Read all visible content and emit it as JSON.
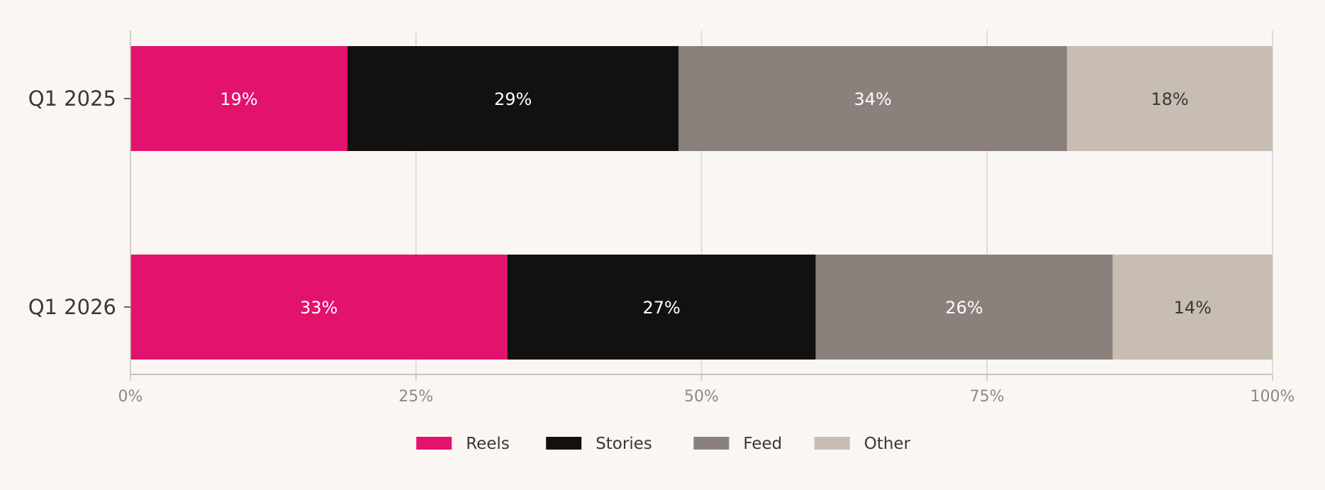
{
  "chart_data": {
    "type": "bar",
    "orientation": "horizontal",
    "stacked": true,
    "categories": [
      "Q1 2025",
      "Q1 2026"
    ],
    "series": [
      {
        "name": "Reels",
        "values": [
          19,
          33
        ],
        "color": "#e3126d",
        "label_color": "#ffffff"
      },
      {
        "name": "Stories",
        "values": [
          29,
          27
        ],
        "color": "#121110",
        "label_color": "#ffffff"
      },
      {
        "name": "Feed",
        "values": [
          34,
          26
        ],
        "color": "#8a817c",
        "label_color": "#ffffff"
      },
      {
        "name": "Other",
        "values": [
          18,
          14
        ],
        "color": "#c8bdb3",
        "label_color": "#3b3735"
      }
    ],
    "xlim": [
      0,
      100
    ],
    "x_ticks": [
      0,
      25,
      50,
      75,
      100
    ],
    "x_tick_labels": [
      "0%",
      "25%",
      "50%",
      "75%",
      "100%"
    ],
    "data_label_suffix": "%",
    "grid": "vertical",
    "legend_position": "bottom",
    "title": "",
    "xlabel": "",
    "ylabel": "",
    "colors": {
      "background": "#f9f6f3",
      "grid": "#d9d3ce",
      "axis": "#c9c3be",
      "tick_text": "#8f8985",
      "category_text": "#3b3735"
    }
  }
}
